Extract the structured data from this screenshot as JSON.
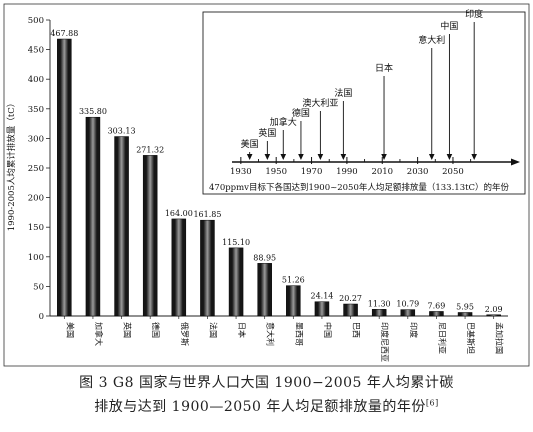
{
  "chart_data": [
    {
      "type": "bar",
      "ylabel": "1990-2005人均累计排放量（tC）",
      "ylim": [
        0,
        500
      ],
      "yticks": [
        0,
        50,
        100,
        150,
        200,
        250,
        300,
        350,
        400,
        450,
        500
      ],
      "categories": [
        "美国",
        "加拿大",
        "英国",
        "德国",
        "俄罗斯",
        "法国",
        "日本",
        "意大利",
        "墨西哥",
        "中国",
        "巴西",
        "印度尼西亚",
        "印度",
        "尼日利亚",
        "巴基斯坦",
        "孟加拉国"
      ],
      "values": [
        467.88,
        335.8,
        303.13,
        271.32,
        164.0,
        161.85,
        115.1,
        88.95,
        51.26,
        24.14,
        20.27,
        11.3,
        10.79,
        7.69,
        5.95,
        2.09
      ],
      "value_labels": [
        "467.88",
        "335.80",
        "303.13",
        "271.32",
        "164.00",
        "161.85",
        "115.10",
        "88.95",
        "51.26",
        "24.14",
        "20.27",
        "11.30",
        "10.79",
        "7.69",
        "5.95",
        "2.09"
      ],
      "grid": false,
      "colors": {
        "bar_dark": "#161616",
        "bar_light": "#9a9a9a"
      }
    },
    {
      "type": "timeline",
      "xlabel": "470ppmv目标下各国达到1900~2050年人均足额排放量（133.13tC）的年份",
      "xlim": [
        1925,
        2080
      ],
      "ticks": [
        1930,
        1950,
        1970,
        1990,
        2010,
        2030,
        2050
      ],
      "tick_labels": [
        "1930",
        "1950",
        "1970",
        "1990",
        "2010",
        "2030",
        "2050"
      ],
      "minor_ticks": [
        1940,
        1960,
        1980,
        2000,
        2020,
        2040,
        2060
      ],
      "events": [
        {
          "label": "美国",
          "year": 1935,
          "level": 0
        },
        {
          "label": "英国",
          "year": 1945,
          "level": 1
        },
        {
          "label": "加拿大",
          "year": 1954,
          "level": 2
        },
        {
          "label": "德国",
          "year": 1964,
          "level": 3
        },
        {
          "label": "澳大利亚",
          "year": 1975,
          "level": 4
        },
        {
          "label": "法国",
          "year": 1988,
          "level": 5
        },
        {
          "label": "日本",
          "year": 2011,
          "level": 6
        },
        {
          "label": "意大利",
          "year": 2038,
          "level": 7
        },
        {
          "label": "中国",
          "year": 2048,
          "level": 8
        },
        {
          "label": "印度",
          "year": 2062,
          "level": 9
        }
      ]
    }
  ],
  "caption": {
    "line1": "图 3  G8 国家与世界人口大国 1900−2005 年人均累计碳",
    "line2": "排放与达到 1900—2050 年人均足额排放量的年份",
    "ref": "[6]"
  }
}
